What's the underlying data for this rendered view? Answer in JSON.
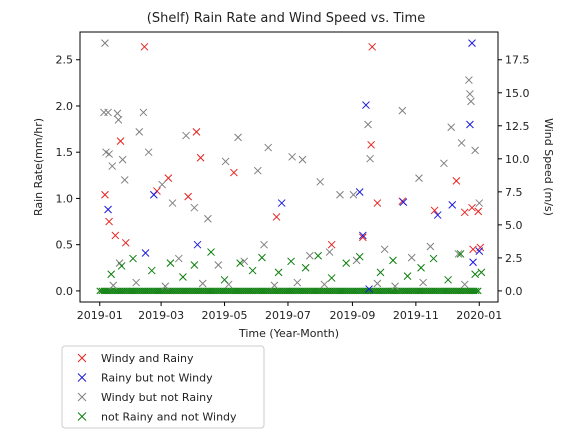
{
  "chart_data": {
    "type": "scatter",
    "title": "(Shelf) Rain Rate and Wind Speed vs. Time",
    "xlabel": "Time (Year-Month)",
    "ylabel": "Rain Rate(mm/hr)",
    "y2label": "Wind Speed (m/s)",
    "marker": "x",
    "x_ticks": [
      "2019-01",
      "2019-03",
      "2019-05",
      "2019-07",
      "2019-09",
      "2019-11",
      "2020-01"
    ],
    "xlim": [
      "2018-12-13",
      "2020-01-19"
    ],
    "y_ticks": [
      "0.0",
      "0.5",
      "1.0",
      "1.5",
      "2.0",
      "2.5"
    ],
    "ylim": [
      -0.12,
      2.8
    ],
    "y2_ticks": [
      "0.0",
      "2.5",
      "5.0",
      "7.5",
      "10.0",
      "12.5",
      "15.0",
      "17.5"
    ],
    "y2lim": [
      -0.84,
      19.6
    ],
    "legend_position": "below-left",
    "series": [
      {
        "name": "Windy and Rainy",
        "color": "#e8221e",
        "points": [
          [
            "2019-01-06",
            1.04
          ],
          [
            "2019-01-10",
            0.75
          ],
          [
            "2019-01-16",
            0.6
          ],
          [
            "2019-01-21",
            1.62
          ],
          [
            "2019-01-26",
            0.52
          ],
          [
            "2019-02-13",
            2.64
          ],
          [
            "2019-02-25",
            1.08
          ],
          [
            "2019-03-08",
            1.22
          ],
          [
            "2019-03-27",
            1.02
          ],
          [
            "2019-04-04",
            1.72
          ],
          [
            "2019-04-08",
            1.44
          ],
          [
            "2019-05-10",
            1.28
          ],
          [
            "2019-06-20",
            0.8
          ],
          [
            "2019-08-12",
            0.5
          ],
          [
            "2019-09-11",
            0.58
          ],
          [
            "2019-09-20",
            2.64
          ],
          [
            "2019-09-19",
            1.58
          ],
          [
            "2019-09-25",
            0.95
          ],
          [
            "2019-10-19",
            0.97
          ],
          [
            "2019-11-19",
            0.87
          ],
          [
            "2019-12-10",
            1.19
          ],
          [
            "2019-12-18",
            0.85
          ],
          [
            "2019-12-25",
            0.9
          ],
          [
            "2019-12-31",
            0.86
          ],
          [
            "2019-12-26",
            0.45
          ],
          [
            "2020-01-02",
            0.47
          ]
        ]
      },
      {
        "name": "Rainy but not Windy",
        "color": "#1a1ae0",
        "points": [
          [
            "2019-01-09",
            0.88
          ],
          [
            "2019-02-14",
            0.41
          ],
          [
            "2019-02-22",
            1.04
          ],
          [
            "2019-04-05",
            0.5
          ],
          [
            "2019-06-25",
            0.95
          ],
          [
            "2019-09-08",
            1.07
          ],
          [
            "2019-09-11",
            0.6
          ],
          [
            "2019-09-14",
            2.01
          ],
          [
            "2019-09-17",
            0.02
          ],
          [
            "2019-10-20",
            0.96
          ],
          [
            "2019-11-22",
            0.82
          ],
          [
            "2019-12-06",
            0.93
          ],
          [
            "2019-12-23",
            1.8
          ],
          [
            "2019-12-25",
            2.68
          ],
          [
            "2019-12-26",
            0.31
          ],
          [
            "2020-01-01",
            0.43
          ]
        ]
      },
      {
        "name": "Windy but not Rainy",
        "color": "#808080",
        "points": [
          [
            "2019-01-06",
            2.68
          ],
          [
            "2019-01-05",
            1.93
          ],
          [
            "2019-01-07",
            1.5
          ],
          [
            "2019-01-09",
            1.93
          ],
          [
            "2019-01-10",
            1.48
          ],
          [
            "2019-01-13",
            1.35
          ],
          [
            "2019-01-18",
            1.92
          ],
          [
            "2019-01-19",
            1.85
          ],
          [
            "2019-01-23",
            1.42
          ],
          [
            "2019-01-25",
            1.2
          ],
          [
            "2019-02-08",
            1.72
          ],
          [
            "2019-02-12",
            1.93
          ],
          [
            "2019-02-17",
            1.5
          ],
          [
            "2019-03-02",
            1.15
          ],
          [
            "2019-03-12",
            0.95
          ],
          [
            "2019-03-25",
            1.68
          ],
          [
            "2019-04-02",
            0.9
          ],
          [
            "2019-04-15",
            0.78
          ],
          [
            "2019-05-02",
            1.4
          ],
          [
            "2019-05-14",
            1.66
          ],
          [
            "2019-06-02",
            1.3
          ],
          [
            "2019-06-12",
            1.55
          ],
          [
            "2019-07-05",
            1.45
          ],
          [
            "2019-07-15",
            1.42
          ],
          [
            "2019-08-01",
            1.18
          ],
          [
            "2019-08-20",
            1.04
          ],
          [
            "2019-09-02",
            1.04
          ],
          [
            "2019-09-16",
            1.8
          ],
          [
            "2019-09-18",
            1.43
          ],
          [
            "2019-10-19",
            1.95
          ],
          [
            "2019-11-04",
            1.22
          ],
          [
            "2019-11-28",
            1.38
          ],
          [
            "2019-12-05",
            1.77
          ],
          [
            "2019-12-15",
            1.6
          ],
          [
            "2019-12-22",
            2.28
          ],
          [
            "2019-12-23",
            2.13
          ],
          [
            "2019-12-24",
            2.05
          ],
          [
            "2019-12-28",
            1.52
          ],
          [
            "2020-01-01",
            0.95
          ],
          [
            "2019-01-20",
            0.3
          ],
          [
            "2019-03-18",
            0.35
          ],
          [
            "2019-04-25",
            0.28
          ],
          [
            "2019-05-20",
            0.32
          ],
          [
            "2019-06-08",
            0.5
          ],
          [
            "2019-07-22",
            0.38
          ],
          [
            "2019-08-10",
            0.42
          ],
          [
            "2019-09-05",
            0.33
          ],
          [
            "2019-10-02",
            0.45
          ],
          [
            "2019-10-28",
            0.36
          ],
          [
            "2019-11-15",
            0.48
          ],
          [
            "2019-12-12",
            0.4
          ],
          [
            "2019-01-14",
            0.06
          ],
          [
            "2019-02-05",
            0.09
          ],
          [
            "2019-03-05",
            0.05
          ],
          [
            "2019-04-10",
            0.08
          ],
          [
            "2019-05-05",
            0.07
          ],
          [
            "2019-06-18",
            0.06
          ],
          [
            "2019-07-10",
            0.09
          ],
          [
            "2019-08-05",
            0.07
          ],
          [
            "2019-09-25",
            0.08
          ],
          [
            "2019-10-12",
            0.05
          ],
          [
            "2019-11-08",
            0.09
          ],
          [
            "2019-12-18",
            0.07
          ]
        ]
      },
      {
        "name": "not Rainy and not Windy",
        "color": "#0a7d0a",
        "points": [
          [
            "2019-01-12",
            0.18
          ],
          [
            "2019-01-22",
            0.27
          ],
          [
            "2019-02-02",
            0.35
          ],
          [
            "2019-02-20",
            0.22
          ],
          [
            "2019-03-10",
            0.3
          ],
          [
            "2019-03-22",
            0.15
          ],
          [
            "2019-04-02",
            0.28
          ],
          [
            "2019-04-18",
            0.42
          ],
          [
            "2019-05-01",
            0.12
          ],
          [
            "2019-05-16",
            0.3
          ],
          [
            "2019-05-28",
            0.22
          ],
          [
            "2019-06-06",
            0.36
          ],
          [
            "2019-06-22",
            0.2
          ],
          [
            "2019-07-04",
            0.32
          ],
          [
            "2019-07-18",
            0.25
          ],
          [
            "2019-07-30",
            0.38
          ],
          [
            "2019-08-12",
            0.14
          ],
          [
            "2019-08-26",
            0.3
          ],
          [
            "2019-09-08",
            0.37
          ],
          [
            "2019-09-28",
            0.2
          ],
          [
            "2019-10-10",
            0.33
          ],
          [
            "2019-10-24",
            0.16
          ],
          [
            "2019-11-06",
            0.25
          ],
          [
            "2019-11-18",
            0.35
          ],
          [
            "2019-12-02",
            0.12
          ],
          [
            "2019-12-14",
            0.4
          ],
          [
            "2019-12-28",
            0.18
          ],
          [
            "2020-01-03",
            0.2
          ]
        ]
      }
    ]
  }
}
